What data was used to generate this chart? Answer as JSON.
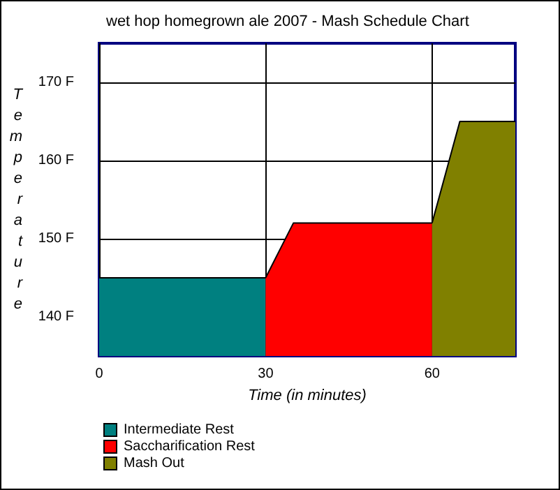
{
  "chart_data": {
    "type": "area",
    "title": "wet hop homegrown ale 2007 - Mash Schedule Chart",
    "xlabel": "Time (in minutes)",
    "ylabel": "Temperature",
    "series": [
      {
        "name": "Intermediate Rest",
        "color": "#008080",
        "x": [
          0,
          30
        ],
        "values": [
          145,
          145
        ]
      },
      {
        "name": "Saccharification Rest",
        "color": "#ff0000",
        "x": [
          30,
          35,
          60
        ],
        "values": [
          145,
          152,
          152
        ]
      },
      {
        "name": "Mash Out",
        "color": "#808000",
        "x": [
          60,
          65,
          75
        ],
        "values": [
          152,
          165,
          165
        ]
      }
    ],
    "xlim": [
      0,
      75
    ],
    "xticks": [
      0,
      30,
      60
    ],
    "ylim": [
      135,
      175
    ],
    "yticks": [
      {
        "value": 140,
        "label": "140 F"
      },
      {
        "value": 150,
        "label": "150 F"
      },
      {
        "value": 160,
        "label": "160 F"
      },
      {
        "value": 170,
        "label": "170 F"
      }
    ],
    "grid": true,
    "legend": "bottom left",
    "marker": "none"
  }
}
